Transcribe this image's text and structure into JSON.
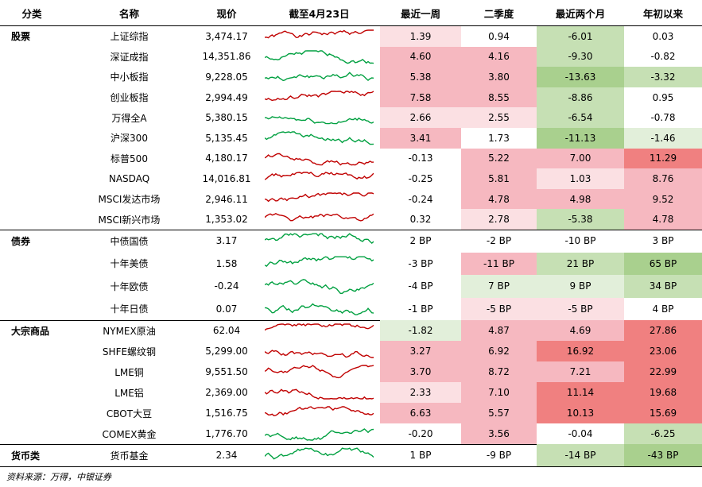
{
  "header": [
    "分类",
    "名称",
    "现价",
    "截至4月23日",
    "最近一周",
    "二季度",
    "最近两个月",
    "年初以来"
  ],
  "groups": [
    {
      "label": "股票",
      "rows": [
        {
          "name": "上证综指",
          "price": "3,474.17",
          "week": "1.39",
          "q2": "0.94",
          "two_month": "-6.01",
          "ytd": "0.03",
          "trend_color": "#c00000",
          "bg": [
            "#fbe0e3",
            null,
            "#c6e0b4",
            null
          ]
        },
        {
          "name": "深证成指",
          "price": "14,351.86",
          "week": "4.60",
          "q2": "4.16",
          "two_month": "-9.30",
          "ytd": "-0.82",
          "trend_color": "#00a040",
          "bg": [
            "#f6b8c0",
            "#f6b8c0",
            "#c6e0b4",
            null
          ]
        },
        {
          "name": "中小板指",
          "price": "9,228.05",
          "week": "5.38",
          "q2": "3.80",
          "two_month": "-13.63",
          "ytd": "-3.32",
          "trend_color": "#00a040",
          "bg": [
            "#f6b8c0",
            "#f6b8c0",
            "#a9d08e",
            "#c6e0b4"
          ]
        },
        {
          "name": "创业板指",
          "price": "2,994.49",
          "week": "7.58",
          "q2": "8.55",
          "two_month": "-8.86",
          "ytd": "0.95",
          "trend_color": "#c00000",
          "bg": [
            "#f6b8c0",
            "#f6b8c0",
            "#c6e0b4",
            null
          ]
        },
        {
          "name": "万得全A",
          "price": "5,380.15",
          "week": "2.66",
          "q2": "2.55",
          "two_month": "-6.54",
          "ytd": "-0.78",
          "trend_color": "#00a040",
          "bg": [
            "#fbe0e3",
            "#fbe0e3",
            "#c6e0b4",
            null
          ]
        },
        {
          "name": "沪深300",
          "price": "5,135.45",
          "week": "3.41",
          "q2": "1.73",
          "two_month": "-11.13",
          "ytd": "-1.46",
          "trend_color": "#00a040",
          "bg": [
            "#f6b8c0",
            null,
            "#a9d08e",
            "#e2efda"
          ]
        },
        {
          "name": "标普500",
          "price": "4,180.17",
          "week": "-0.13",
          "q2": "5.22",
          "two_month": "7.00",
          "ytd": "11.29",
          "trend_color": "#c00000",
          "bg": [
            null,
            "#f6b8c0",
            "#f6b8c0",
            "#f08080"
          ]
        },
        {
          "name": "NASDAQ",
          "price": "14,016.81",
          "week": "-0.25",
          "q2": "5.81",
          "two_month": "1.03",
          "ytd": "8.76",
          "trend_color": "#c00000",
          "bg": [
            null,
            "#f6b8c0",
            "#fbe0e3",
            "#f6b8c0"
          ]
        },
        {
          "name": "MSCI发达市场",
          "price": "2,946.11",
          "week": "-0.24",
          "q2": "4.78",
          "two_month": "4.98",
          "ytd": "9.52",
          "trend_color": "#c00000",
          "bg": [
            null,
            "#f6b8c0",
            "#f6b8c0",
            "#f6b8c0"
          ]
        },
        {
          "name": "MSCI新兴市场",
          "price": "1,353.02",
          "week": "0.32",
          "q2": "2.78",
          "two_month": "-5.38",
          "ytd": "4.78",
          "trend_color": "#c00000",
          "bg": [
            null,
            "#fbe0e3",
            "#c6e0b4",
            "#f6b8c0"
          ]
        }
      ]
    },
    {
      "label": "债券",
      "rows": [
        {
          "name": "中债国债",
          "price": "3.17",
          "week": "2 BP",
          "q2": "-2 BP",
          "two_month": "-10 BP",
          "ytd": "3 BP",
          "trend_color": "#00a040",
          "bg": [
            null,
            null,
            null,
            null
          ]
        },
        {
          "name": "十年美债",
          "price": "1.58",
          "week": "-3 BP",
          "q2": "-11 BP",
          "two_month": "21 BP",
          "ytd": "65 BP",
          "trend_color": "#00a040",
          "bg": [
            null,
            "#f6b8c0",
            "#c6e0b4",
            "#a9d08e"
          ]
        },
        {
          "name": "十年欧债",
          "price": "-0.24",
          "week": "-4 BP",
          "q2": "7 BP",
          "two_month": "9 BP",
          "ytd": "34 BP",
          "trend_color": "#00a040",
          "bg": [
            null,
            "#e2efda",
            "#e2efda",
            "#c6e0b4"
          ]
        },
        {
          "name": "十年日债",
          "price": "0.07",
          "week": "-1 BP",
          "q2": "-5 BP",
          "two_month": "-5 BP",
          "ytd": "4 BP",
          "trend_color": "#00a040",
          "bg": [
            null,
            "#fbe0e3",
            "#fbe0e3",
            null
          ]
        }
      ]
    },
    {
      "label": "大宗商品",
      "rows": [
        {
          "name": "NYMEX原油",
          "price": "62.04",
          "week": "-1.82",
          "q2": "4.87",
          "two_month": "4.69",
          "ytd": "27.86",
          "trend_color": "#c00000",
          "bg": [
            "#e2efda",
            "#f6b8c0",
            "#f6b8c0",
            "#f08080"
          ]
        },
        {
          "name": "SHFE螺纹钢",
          "price": "5,299.00",
          "week": "3.27",
          "q2": "6.92",
          "two_month": "16.92",
          "ytd": "23.06",
          "trend_color": "#c00000",
          "bg": [
            "#f6b8c0",
            "#f6b8c0",
            "#f08080",
            "#f08080"
          ]
        },
        {
          "name": "LME铜",
          "price": "9,551.50",
          "week": "3.70",
          "q2": "8.72",
          "two_month": "7.21",
          "ytd": "22.99",
          "trend_color": "#c00000",
          "bg": [
            "#f6b8c0",
            "#f6b8c0",
            "#f6b8c0",
            "#f08080"
          ]
        },
        {
          "name": "LME铝",
          "price": "2,369.00",
          "week": "2.33",
          "q2": "7.10",
          "two_month": "11.14",
          "ytd": "19.68",
          "trend_color": "#c00000",
          "bg": [
            "#fbe0e3",
            "#f6b8c0",
            "#f08080",
            "#f08080"
          ]
        },
        {
          "name": "CBOT大豆",
          "price": "1,516.75",
          "week": "6.63",
          "q2": "5.57",
          "two_month": "10.13",
          "ytd": "15.69",
          "trend_color": "#c00000",
          "bg": [
            "#f6b8c0",
            "#f6b8c0",
            "#f08080",
            "#f08080"
          ]
        },
        {
          "name": "COMEX黄金",
          "price": "1,776.70",
          "week": "-0.20",
          "q2": "3.56",
          "two_month": "-0.04",
          "ytd": "-6.25",
          "trend_color": "#00a040",
          "bg": [
            null,
            "#f6b8c0",
            null,
            "#c6e0b4"
          ]
        }
      ]
    },
    {
      "label": "货币类",
      "rows": [
        {
          "name": "货币基金",
          "price": "2.34",
          "week": "1 BP",
          "q2": "-9 BP",
          "two_month": "-14 BP",
          "ytd": "-43 BP",
          "trend_color": "#00a040",
          "bg": [
            null,
            null,
            "#c6e0b4",
            "#a9d08e"
          ]
        }
      ]
    }
  ],
  "source": "资料来源：万得，中银证券"
}
